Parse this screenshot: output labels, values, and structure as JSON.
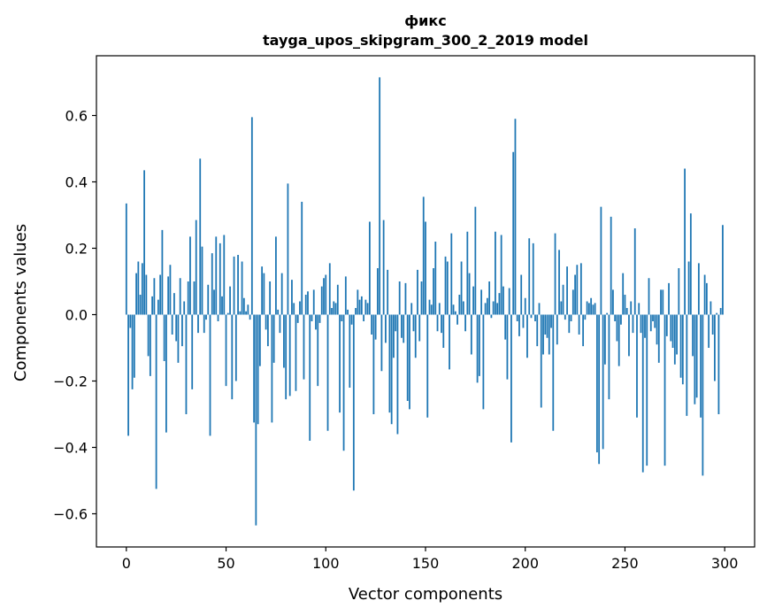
{
  "chart_data": {
    "type": "bar",
    "title": "фикс",
    "subtitle": "tayga_upos_skipgram_300_2_2019 model",
    "xlabel": "Vector components",
    "ylabel": "Components values",
    "xlim": [
      -15,
      315
    ],
    "ylim": [
      -0.7,
      0.78
    ],
    "xticks": [
      0,
      50,
      100,
      150,
      200,
      250,
      300
    ],
    "xtick_labels": [
      "0",
      "50",
      "100",
      "150",
      "200",
      "250",
      "300"
    ],
    "yticks": [
      -0.6,
      -0.4,
      -0.2,
      0.0,
      0.2,
      0.4,
      0.6
    ],
    "ytick_labels": [
      "−0.6",
      "−0.4",
      "−0.2",
      "0.0",
      "0.2",
      "0.4",
      "0.6"
    ],
    "bar_color": "#1f77b4",
    "grid": false,
    "values": [
      0.335,
      -0.365,
      -0.04,
      -0.225,
      -0.19,
      0.125,
      0.16,
      0.06,
      0.155,
      0.435,
      0.12,
      -0.125,
      -0.185,
      0.055,
      0.11,
      -0.525,
      0.045,
      0.12,
      0.255,
      -0.14,
      -0.355,
      0.115,
      0.15,
      -0.06,
      0.065,
      -0.08,
      -0.145,
      0.11,
      -0.095,
      0.04,
      -0.3,
      0.1,
      0.235,
      -0.225,
      0.1,
      0.285,
      -0.055,
      0.47,
      0.205,
      -0.055,
      -0.015,
      0.09,
      -0.365,
      0.185,
      0.075,
      0.235,
      -0.02,
      0.215,
      0.055,
      0.24,
      -0.215,
      0.005,
      0.085,
      -0.255,
      0.175,
      -0.2,
      0.18,
      0.01,
      0.16,
      0.05,
      0.01,
      0.03,
      -0.015,
      0.595,
      -0.325,
      -0.635,
      -0.33,
      -0.155,
      0.145,
      0.125,
      -0.045,
      -0.095,
      0.1,
      -0.325,
      -0.145,
      0.235,
      0.015,
      -0.055,
      0.125,
      -0.16,
      -0.255,
      0.395,
      -0.245,
      0.105,
      0.035,
      -0.23,
      -0.025,
      0.04,
      0.34,
      -0.195,
      0.06,
      0.07,
      -0.38,
      -0.02,
      0.075,
      -0.045,
      -0.215,
      -0.025,
      0.085,
      0.11,
      0.12,
      -0.35,
      0.155,
      0.02,
      0.04,
      0.035,
      0.09,
      -0.295,
      -0.02,
      -0.41,
      0.115,
      0.015,
      -0.22,
      -0.03,
      -0.53,
      0.02,
      0.075,
      0.045,
      0.055,
      -0.02,
      0.045,
      0.035,
      0.28,
      -0.06,
      -0.3,
      -0.075,
      0.14,
      0.715,
      -0.17,
      0.285,
      -0.085,
      0.135,
      -0.295,
      -0.33,
      -0.13,
      -0.05,
      -0.36,
      0.1,
      -0.07,
      -0.085,
      0.095,
      -0.26,
      -0.285,
      0.035,
      -0.05,
      -0.13,
      0.135,
      -0.08,
      0.1,
      0.355,
      0.28,
      -0.31,
      0.045,
      0.03,
      0.14,
      0.22,
      -0.05,
      0.035,
      -0.055,
      -0.1,
      0.175,
      0.16,
      -0.165,
      0.245,
      0.03,
      0.01,
      -0.03,
      0.06,
      0.16,
      0.04,
      -0.05,
      0.25,
      0.125,
      -0.12,
      0.085,
      0.325,
      -0.205,
      -0.185,
      0.075,
      -0.285,
      0.035,
      0.05,
      0.1,
      -0.01,
      0.04,
      0.25,
      0.035,
      0.065,
      0.24,
      0.085,
      -0.075,
      -0.195,
      0.08,
      -0.385,
      0.49,
      0.59,
      -0.02,
      -0.065,
      0.12,
      -0.04,
      0.05,
      -0.13,
      0.23,
      -0.01,
      0.215,
      -0.02,
      -0.095,
      0.035,
      -0.28,
      -0.12,
      -0.06,
      -0.07,
      -0.12,
      -0.04,
      -0.35,
      0.245,
      -0.09,
      0.195,
      0.04,
      0.09,
      -0.015,
      0.145,
      -0.055,
      -0.02,
      0.075,
      0.12,
      0.15,
      -0.06,
      0.155,
      -0.095,
      -0.015,
      0.04,
      0.035,
      0.05,
      0.03,
      0.035,
      -0.415,
      -0.45,
      0.325,
      -0.405,
      -0.15,
      0.005,
      -0.255,
      0.295,
      0.075,
      -0.02,
      -0.08,
      -0.155,
      -0.03,
      0.125,
      0.06,
      0.02,
      -0.125,
      0.04,
      -0.055,
      0.26,
      -0.31,
      0.035,
      -0.055,
      -0.475,
      -0.07,
      -0.455,
      0.11,
      -0.05,
      -0.02,
      -0.04,
      -0.09,
      -0.145,
      0.075,
      0.075,
      -0.455,
      -0.065,
      0.095,
      -0.08,
      -0.1,
      -0.15,
      -0.12,
      0.14,
      -0.19,
      -0.21,
      0.44,
      -0.305,
      0.16,
      0.305,
      -0.125,
      -0.27,
      -0.25,
      0.155,
      -0.31,
      -0.485,
      0.12,
      0.095,
      -0.1,
      0.04,
      -0.06,
      -0.2,
      0.005,
      -0.3,
      0.02,
      0.27
    ]
  }
}
